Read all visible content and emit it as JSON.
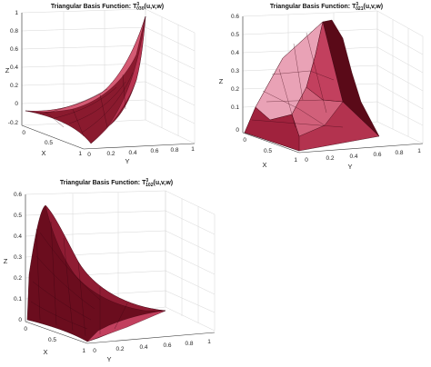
{
  "chart_data": [
    {
      "type": "surface",
      "title_prefix": "Triangular Basis Function: T",
      "title_sub": "030",
      "title_sup": "3",
      "title_suffix": "(u,v,w)",
      "xlabel": "X",
      "ylabel": "Y",
      "zlabel": "Z",
      "z_ticks": [
        "1",
        "0.8",
        "0.6",
        "0.4",
        "0.2",
        "0",
        "-0.2"
      ],
      "x_ticks": [
        "0",
        "0.5",
        "1"
      ],
      "y_ticks": [
        "0",
        "0.2",
        "0.4",
        "0.6",
        "0.8",
        "1"
      ],
      "zlim": [
        -0.2,
        1
      ],
      "grid": true,
      "colors": {
        "light": "#f3c4d2",
        "dark": "#6a0a1c",
        "edge": "#3a0410"
      },
      "description": "Cubic corner basis function: surface = v^3, 0 at v=0 rising to 1 at v=1"
    },
    {
      "type": "surface",
      "title_prefix": "Triangular Basis Function: T",
      "title_sub": "021",
      "title_sup": "3",
      "title_suffix": "(u,v,w)",
      "xlabel": "X",
      "ylabel": "Y",
      "zlabel": "Z",
      "z_ticks": [
        "0.6",
        "0.5",
        "0.4",
        "0.3",
        "0.2",
        "0.1",
        "0"
      ],
      "x_ticks": [
        "0",
        "0.5",
        "1"
      ],
      "y_ticks": [
        "0",
        "0.2",
        "0.4",
        "0.6",
        "0.8",
        "1"
      ],
      "zlim": [
        0,
        0.6
      ],
      "grid": true,
      "colors": {
        "light": "#f3c4d2",
        "dark": "#6a0a1c",
        "edge": "#3a0410"
      }
    },
    {
      "type": "surface",
      "title_prefix": "Triangular Basis Function: T",
      "title_sub": "102",
      "title_sup": "3",
      "title_suffix": "(u,v,w)",
      "xlabel": "X",
      "ylabel": "Y",
      "zlabel": "Z",
      "z_ticks": [
        "0.6",
        "0.5",
        "0.4",
        "0.3",
        "0.2",
        "0.1",
        "0"
      ],
      "x_ticks": [
        "0",
        "0.5",
        "1"
      ],
      "y_ticks": [
        "0",
        "0.2",
        "0.4",
        "0.6",
        "0.8",
        "1"
      ],
      "zlim": [
        0,
        0.6
      ],
      "grid": true,
      "colors": {
        "light": "#f3c4d2",
        "dark": "#6a0a1c",
        "edge": "#3a0410"
      }
    }
  ]
}
